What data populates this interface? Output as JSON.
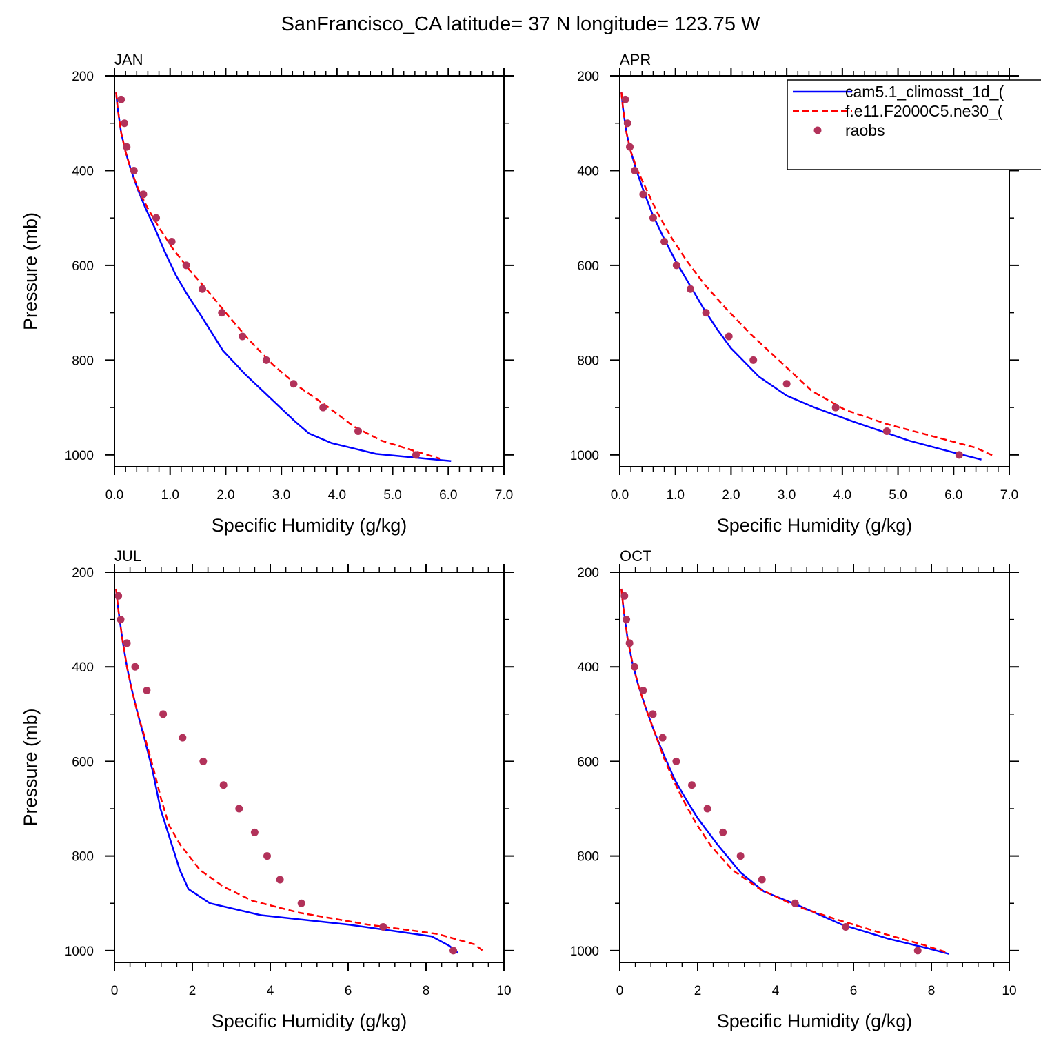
{
  "title": "SanFrancisco_CA  latitude= 37 N longitude= 123.75 W",
  "colors": {
    "model1": "#0000ff",
    "model2": "#ff0000",
    "obs": "#b2325a"
  },
  "legend": {
    "position": "top-right of APR panel",
    "items": [
      {
        "label": "cam5.1_climosst_1d_(",
        "style": "solid"
      },
      {
        "label": "f.e11.F2000C5.ne30_(",
        "style": "dashed"
      },
      {
        "label": "raobs",
        "style": "marker"
      }
    ]
  },
  "chart_data": [
    {
      "type": "line",
      "panel_title": "JAN",
      "xlabel": "Specific Humidity (g/kg)",
      "ylabel": "Pressure (mb)",
      "xlim": [
        0,
        7
      ],
      "ylim": [
        200,
        1025
      ],
      "y_reversed": true,
      "x_ticks": [
        "0.0",
        "1.0",
        "2.0",
        "3.0",
        "4.0",
        "5.0",
        "6.0",
        "7.0"
      ],
      "y_ticks": [
        "200",
        "400",
        "600",
        "800",
        "1000"
      ],
      "series": [
        {
          "name": "cam5.1_climosst_1d_",
          "style": "solid",
          "x": [
            0.03,
            0.06,
            0.12,
            0.2,
            0.3,
            0.42,
            0.56,
            0.72,
            0.9,
            1.1,
            1.3,
            1.55,
            1.95,
            2.35,
            2.8,
            3.25,
            3.5,
            3.9,
            4.7,
            6.05
          ],
          "y": [
            235,
            270,
            320,
            360,
            400,
            440,
            480,
            520,
            570,
            620,
            660,
            705,
            780,
            830,
            880,
            930,
            955,
            975,
            998,
            1013
          ]
        },
        {
          "name": "f.e11.F2000C5.ne30_",
          "style": "dashed",
          "x": [
            0.03,
            0.06,
            0.12,
            0.2,
            0.3,
            0.45,
            0.6,
            0.8,
            1.05,
            1.35,
            1.65,
            2.0,
            2.4,
            2.85,
            3.3,
            3.85,
            4.3,
            4.8,
            5.4,
            5.85
          ],
          "y": [
            235,
            270,
            320,
            360,
            400,
            445,
            480,
            520,
            565,
            610,
            650,
            700,
            755,
            810,
            855,
            900,
            940,
            970,
            992,
            1008
          ]
        },
        {
          "name": "raobs",
          "style": "marker",
          "x": [
            0.12,
            0.18,
            0.22,
            0.35,
            0.52,
            0.75,
            1.03,
            1.29,
            1.58,
            1.93,
            2.3,
            2.73,
            3.22,
            3.75,
            4.38,
            5.42
          ],
          "y": [
            250,
            300,
            350,
            400,
            450,
            500,
            550,
            600,
            650,
            700,
            750,
            800,
            850,
            900,
            950,
            1000
          ]
        }
      ]
    },
    {
      "type": "line",
      "panel_title": "APR",
      "xlabel": "Specific Humidity (g/kg)",
      "ylabel": "",
      "xlim": [
        0,
        7
      ],
      "ylim": [
        200,
        1025
      ],
      "y_reversed": true,
      "x_ticks": [
        "0.0",
        "1.0",
        "2.0",
        "3.0",
        "4.0",
        "5.0",
        "6.0",
        "7.0"
      ],
      "y_ticks": [
        "200",
        "400",
        "600",
        "800",
        "1000"
      ],
      "series": [
        {
          "name": "cam5.1_climosst_1d_",
          "style": "solid",
          "x": [
            0.03,
            0.06,
            0.12,
            0.2,
            0.3,
            0.42,
            0.58,
            0.78,
            1.0,
            1.25,
            1.5,
            1.75,
            2.0,
            2.5,
            3.0,
            3.5,
            4.2,
            5.2,
            6.0,
            6.5
          ],
          "y": [
            235,
            270,
            320,
            360,
            400,
            440,
            490,
            540,
            590,
            640,
            690,
            735,
            775,
            835,
            875,
            900,
            930,
            970,
            995,
            1010
          ]
        },
        {
          "name": "f.e11.F2000C5.ne30_",
          "style": "dashed",
          "x": [
            0.03,
            0.06,
            0.12,
            0.2,
            0.32,
            0.48,
            0.68,
            0.92,
            1.2,
            1.52,
            1.9,
            2.35,
            2.9,
            3.45,
            4.05,
            4.8,
            5.6,
            6.4,
            6.75
          ],
          "y": [
            235,
            270,
            320,
            360,
            400,
            440,
            490,
            540,
            590,
            640,
            690,
            745,
            805,
            865,
            905,
            935,
            960,
            985,
            1004
          ]
        },
        {
          "name": "raobs",
          "style": "marker",
          "x": [
            0.1,
            0.14,
            0.18,
            0.27,
            0.42,
            0.6,
            0.8,
            1.02,
            1.27,
            1.55,
            1.96,
            2.4,
            3.0,
            3.88,
            4.8,
            6.1
          ],
          "y": [
            250,
            300,
            350,
            400,
            450,
            500,
            550,
            600,
            650,
            700,
            750,
            800,
            850,
            900,
            950,
            1000
          ]
        }
      ]
    },
    {
      "type": "line",
      "panel_title": "JUL",
      "xlabel": "Specific Humidity (g/kg)",
      "ylabel": "Pressure (mb)",
      "xlim": [
        0,
        10
      ],
      "ylim": [
        200,
        1025
      ],
      "y_reversed": true,
      "x_ticks": [
        "0",
        "2",
        "4",
        "6",
        "8",
        "10"
      ],
      "y_ticks": [
        "200",
        "400",
        "600",
        "800",
        "1000"
      ],
      "series": [
        {
          "name": "cam5.1_climosst_1d_",
          "style": "solid",
          "x": [
            0.04,
            0.1,
            0.2,
            0.32,
            0.45,
            0.6,
            0.78,
            0.98,
            1.18,
            1.45,
            1.68,
            1.9,
            2.45,
            3.75,
            6.0,
            8.15,
            8.6,
            8.82
          ],
          "y": [
            235,
            280,
            340,
            400,
            450,
            500,
            555,
            620,
            700,
            770,
            830,
            870,
            900,
            925,
            945,
            970,
            990,
            1005
          ]
        },
        {
          "name": "f.e11.F2000C5.ne30_",
          "style": "dashed",
          "x": [
            0.04,
            0.1,
            0.2,
            0.32,
            0.45,
            0.6,
            0.8,
            1.0,
            1.2,
            1.4,
            1.68,
            2.2,
            2.8,
            3.55,
            4.75,
            6.5,
            8.3,
            9.25,
            9.5
          ],
          "y": [
            235,
            280,
            340,
            400,
            450,
            500,
            555,
            615,
            680,
            735,
            775,
            830,
            865,
            895,
            920,
            945,
            965,
            987,
            1003
          ]
        },
        {
          "name": "raobs",
          "style": "marker",
          "x": [
            0.1,
            0.16,
            0.32,
            0.53,
            0.83,
            1.25,
            1.75,
            2.28,
            2.8,
            3.2,
            3.6,
            3.92,
            4.25,
            4.8,
            6.9,
            8.7
          ],
          "y": [
            250,
            300,
            350,
            400,
            450,
            500,
            550,
            600,
            650,
            700,
            750,
            800,
            850,
            900,
            950,
            1000
          ]
        }
      ]
    },
    {
      "type": "line",
      "panel_title": "OCT",
      "xlabel": "Specific Humidity (g/kg)",
      "ylabel": "",
      "xlim": [
        0,
        10
      ],
      "ylim": [
        200,
        1025
      ],
      "y_reversed": true,
      "x_ticks": [
        "0",
        "2",
        "4",
        "6",
        "8",
        "10"
      ],
      "y_ticks": [
        "200",
        "400",
        "600",
        "800",
        "1000"
      ],
      "series": [
        {
          "name": "cam5.1_climosst_1d_",
          "style": "solid",
          "x": [
            0.04,
            0.1,
            0.2,
            0.32,
            0.48,
            0.68,
            0.9,
            1.15,
            1.42,
            1.7,
            2.0,
            2.5,
            3.1,
            3.7,
            4.6,
            5.7,
            6.9,
            7.9,
            8.45
          ],
          "y": [
            235,
            280,
            340,
            390,
            440,
            490,
            540,
            590,
            640,
            680,
            720,
            775,
            835,
            875,
            905,
            945,
            975,
            995,
            1007
          ]
        },
        {
          "name": "f.e11.F2000C5.ne30_",
          "style": "dashed",
          "x": [
            0.04,
            0.1,
            0.2,
            0.32,
            0.48,
            0.68,
            0.9,
            1.12,
            1.38,
            1.65,
            1.95,
            2.35,
            2.9,
            3.6,
            4.5,
            5.6,
            6.8,
            7.8,
            8.4
          ],
          "y": [
            235,
            280,
            340,
            390,
            440,
            490,
            540,
            590,
            640,
            685,
            730,
            780,
            830,
            870,
            905,
            935,
            965,
            988,
            1004
          ]
        },
        {
          "name": "raobs",
          "style": "marker",
          "x": [
            0.12,
            0.17,
            0.25,
            0.38,
            0.6,
            0.85,
            1.1,
            1.45,
            1.85,
            2.25,
            2.65,
            3.1,
            3.65,
            4.5,
            5.8,
            7.65
          ],
          "y": [
            250,
            300,
            350,
            400,
            450,
            500,
            550,
            600,
            650,
            700,
            750,
            800,
            850,
            900,
            950,
            1000
          ]
        }
      ]
    }
  ]
}
